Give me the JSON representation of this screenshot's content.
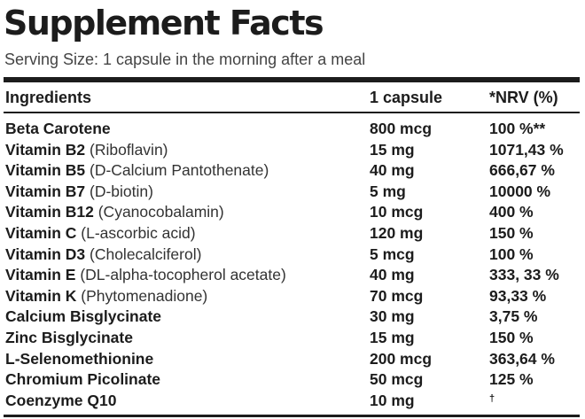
{
  "title": "Supplement Facts",
  "serving_size": "Serving Size: 1 capsule in the morning after a meal",
  "columns": {
    "ingredients": "Ingredients",
    "amount": "1 capsule",
    "nrv": "*NRV (%)"
  },
  "rows": [
    {
      "name": "Beta Carotene",
      "detail": "",
      "amount": "800 mcg",
      "nrv": "100 %**"
    },
    {
      "name": "Vitamin B2",
      "detail": "(Riboflavin)",
      "amount": "15 mg",
      "nrv": "1071,43 %"
    },
    {
      "name": "Vitamin B5",
      "detail": "(D-Calcium Pantothenate)",
      "amount": "40 mg",
      "nrv": "666,67 %"
    },
    {
      "name": "Vitamin B7",
      "detail": "(D-biotin)",
      "amount": "5 mg",
      "nrv": "10000 %"
    },
    {
      "name": "Vitamin B12",
      "detail": "(Cyanocobalamin)",
      "amount": "10 mcg",
      "nrv": "400 %"
    },
    {
      "name": "Vitamin C",
      "detail": "(L-ascorbic acid)",
      "amount": "120 mg",
      "nrv": "150 %"
    },
    {
      "name": "Vitamin D3",
      "detail": "(Cholecalciferol)",
      "amount": "5 mcg",
      "nrv": "100 %"
    },
    {
      "name": "Vitamin E",
      "detail": "(DL-alpha-tocopherol acetate)",
      "amount": "40 mg",
      "nrv": "333, 33 %"
    },
    {
      "name": "Vitamin K",
      "detail": "(Phytomenadione)",
      "amount": "70 mcg",
      "nrv": "93,33 %"
    },
    {
      "name": "Calcium Bisglycinate",
      "detail": "",
      "amount": "30 mg",
      "nrv": "3,75 %"
    },
    {
      "name": "Zinc Bisglycinate",
      "detail": "",
      "amount": "15 mg",
      "nrv": "150 %"
    },
    {
      "name": "L-Selenomethionine",
      "detail": "",
      "amount": "200 mcg",
      "nrv": "363,64 %"
    },
    {
      "name": "Chromium Picolinate",
      "detail": "",
      "amount": "50 mcg",
      "nrv": "125 %"
    },
    {
      "name": "Coenzyme Q10",
      "detail": "",
      "amount": "10 mg",
      "nrv": "†"
    }
  ]
}
